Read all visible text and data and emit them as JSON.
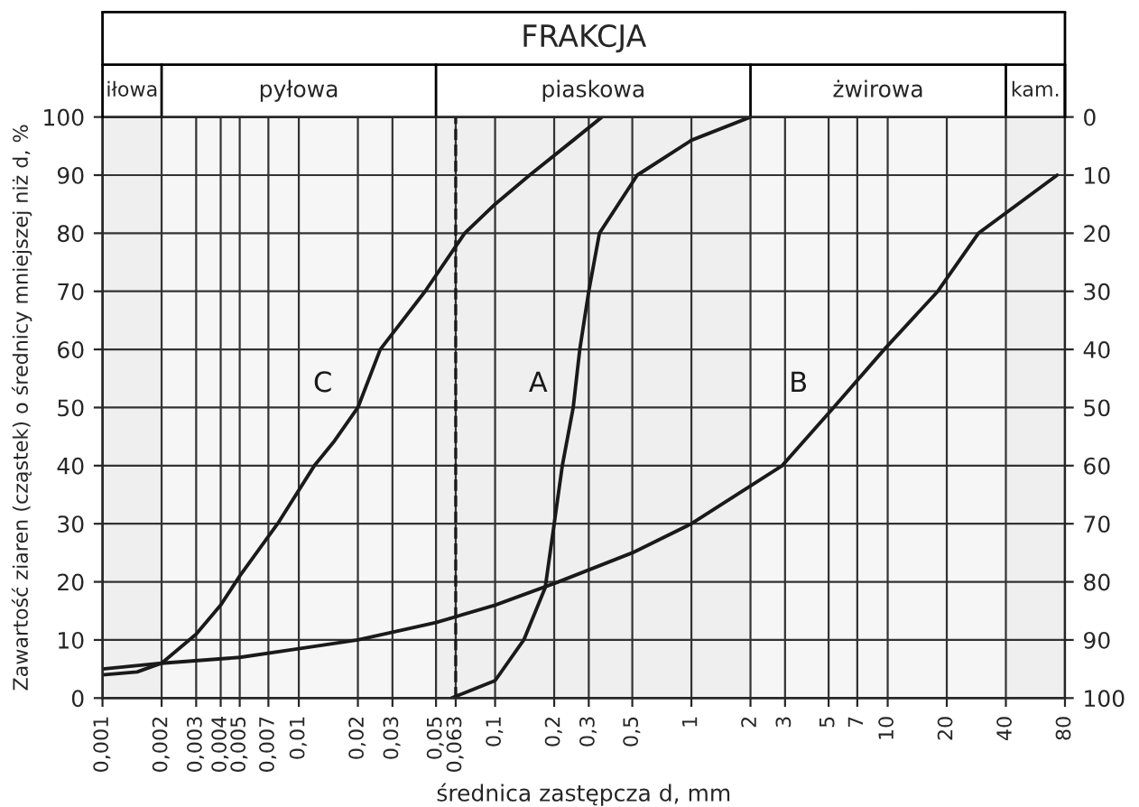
{
  "chart_data": {
    "type": "line",
    "title": "FRAKCJA",
    "xlabel": "średnica zastępcza d, mm",
    "ylabel": "Zawartość ziaren (cząstek) o średnicy mniejszej niż d, %",
    "log": "x",
    "grid": true,
    "marker": "none",
    "line_style": "solid",
    "xlim": [
      0.001,
      80
    ],
    "ylim": [
      0,
      100
    ],
    "xticks": [
      {
        "value": 0.001,
        "label": "0,001"
      },
      {
        "value": 0.002,
        "label": "0,002"
      },
      {
        "value": 0.003,
        "label": "0,003"
      },
      {
        "value": 0.004,
        "label": "0,004"
      },
      {
        "value": 0.005,
        "label": "0,005"
      },
      {
        "value": 0.007,
        "label": "0,007"
      },
      {
        "value": 0.01,
        "label": "0,01"
      },
      {
        "value": 0.02,
        "label": "0,02"
      },
      {
        "value": 0.03,
        "label": "0,03"
      },
      {
        "value": 0.05,
        "label": "0,05"
      },
      {
        "value": 0.063,
        "label": "0,063"
      },
      {
        "value": 0.1,
        "label": "0,1"
      },
      {
        "value": 0.2,
        "label": "0,2"
      },
      {
        "value": 0.3,
        "label": "0,3"
      },
      {
        "value": 0.5,
        "label": "0,5"
      },
      1,
      2,
      3,
      5,
      7,
      10,
      20,
      40,
      80
    ],
    "yticks": [
      0,
      10,
      20,
      30,
      40,
      50,
      60,
      70,
      80,
      90,
      100
    ],
    "y2lim": [
      100,
      0
    ],
    "y2ticks": [
      0,
      10,
      20,
      30,
      40,
      50,
      60,
      70,
      80,
      90,
      100
    ],
    "series": [
      {
        "name": "A",
        "color": "#1a1a1a",
        "x": [
          0.06,
          0.1,
          0.14,
          0.18,
          0.2,
          0.22,
          0.25,
          0.27,
          0.3,
          0.34,
          0.53,
          1,
          2
        ],
        "values": [
          0,
          3,
          10,
          19,
          30,
          40,
          50,
          60,
          70,
          80,
          90,
          96,
          100
        ]
      },
      {
        "name": "B",
        "color": "#1a1a1a",
        "x": [
          0.001,
          0.002,
          0.005,
          0.01,
          0.02,
          0.05,
          0.1,
          0.21,
          0.5,
          1,
          2.9,
          5.3,
          9.6,
          18,
          29,
          73
        ],
        "values": [
          5,
          6,
          7,
          8.5,
          10,
          13,
          16,
          20,
          25,
          30,
          40,
          50,
          60,
          70,
          80,
          90
        ]
      },
      {
        "name": "C",
        "color": "#1a1a1a",
        "x": [
          0.001,
          0.0015,
          0.002,
          0.003,
          0.004,
          0.005,
          0.0078,
          0.012,
          0.015,
          0.02,
          0.026,
          0.044,
          0.07,
          0.1,
          0.15,
          0.25,
          0.35
        ],
        "values": [
          4,
          4.5,
          6,
          11,
          16,
          21,
          30,
          40,
          44,
          50,
          60,
          70,
          80,
          85,
          90,
          96,
          100
        ]
      }
    ],
    "ref_lines": [
      {
        "axis": "x",
        "value": 0.063,
        "line_style": "dashed",
        "color": "#1a1a1a"
      }
    ],
    "bands": [
      {
        "axis": "x",
        "from": 0.001,
        "to": 0.002,
        "label": "iłowa",
        "color": "#efefef"
      },
      {
        "axis": "x",
        "from": 0.002,
        "to": 0.05,
        "label": "pyłowa",
        "color": "#f6f6f6"
      },
      {
        "axis": "x",
        "from": 0.05,
        "to": 2,
        "label": "piaskowa",
        "color": "#efefef"
      },
      {
        "axis": "x",
        "from": 2,
        "to": 40,
        "label": "żwirowa",
        "color": "#f6f6f6"
      },
      {
        "axis": "x",
        "from": 40,
        "to": 80,
        "label": "kam.",
        "color": "#efefef"
      }
    ]
  }
}
